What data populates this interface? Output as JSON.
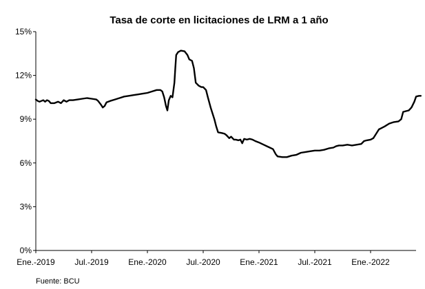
{
  "chart_data": {
    "type": "line",
    "title": "Tasa de corte en licitaciones de LRM a 1 año",
    "xlabel": "",
    "ylabel": "",
    "source": "Fuente: BCU",
    "x_ticks": [
      {
        "label": "Ene.-2019",
        "month": 0
      },
      {
        "label": "Jul.-2019",
        "month": 6
      },
      {
        "label": "Ene.-2020",
        "month": 12
      },
      {
        "label": "Jul.-2020",
        "month": 18
      },
      {
        "label": "Ene.-2021",
        "month": 24
      },
      {
        "label": "Jul.-2021",
        "month": 30
      },
      {
        "label": "Ene.-2022",
        "month": 36
      }
    ],
    "y_ticks": [
      {
        "label": "0%",
        "value": 0
      },
      {
        "label": "3%",
        "value": 3
      },
      {
        "label": "6%",
        "value": 6
      },
      {
        "label": "9%",
        "value": 9
      },
      {
        "label": "12%",
        "value": 12
      },
      {
        "label": "15%",
        "value": 15
      }
    ],
    "ylim": [
      0,
      15
    ],
    "xlim_month": [
      0,
      41
    ],
    "grid": false,
    "legend": "none",
    "color": "#000000",
    "series": [
      {
        "points": [
          [
            0.0,
            10.35
          ],
          [
            0.2,
            10.25
          ],
          [
            0.4,
            10.2
          ],
          [
            0.6,
            10.25
          ],
          [
            0.8,
            10.3
          ],
          [
            1.0,
            10.2
          ],
          [
            1.2,
            10.3
          ],
          [
            1.4,
            10.25
          ],
          [
            1.6,
            10.1
          ],
          [
            2.0,
            10.1
          ],
          [
            2.4,
            10.2
          ],
          [
            2.7,
            10.1
          ],
          [
            3.0,
            10.3
          ],
          [
            3.3,
            10.2
          ],
          [
            3.6,
            10.3
          ],
          [
            4.0,
            10.3
          ],
          [
            4.5,
            10.35
          ],
          [
            5.0,
            10.4
          ],
          [
            5.5,
            10.45
          ],
          [
            6.0,
            10.4
          ],
          [
            6.5,
            10.35
          ],
          [
            6.7,
            10.25
          ],
          [
            7.0,
            10.0
          ],
          [
            7.2,
            9.8
          ],
          [
            7.4,
            9.9
          ],
          [
            7.6,
            10.15
          ],
          [
            8.0,
            10.25
          ],
          [
            8.5,
            10.35
          ],
          [
            9.0,
            10.45
          ],
          [
            9.5,
            10.55
          ],
          [
            10.0,
            10.6
          ],
          [
            10.5,
            10.65
          ],
          [
            11.0,
            10.7
          ],
          [
            11.5,
            10.75
          ],
          [
            12.0,
            10.8
          ],
          [
            12.5,
            10.9
          ],
          [
            13.0,
            11.0
          ],
          [
            13.4,
            11.0
          ],
          [
            13.6,
            10.9
          ],
          [
            13.8,
            10.5
          ],
          [
            14.0,
            9.9
          ],
          [
            14.15,
            9.6
          ],
          [
            14.3,
            10.3
          ],
          [
            14.5,
            10.6
          ],
          [
            14.7,
            10.5
          ],
          [
            14.9,
            11.5
          ],
          [
            15.0,
            12.5
          ],
          [
            15.1,
            13.4
          ],
          [
            15.3,
            13.6
          ],
          [
            15.6,
            13.7
          ],
          [
            16.0,
            13.65
          ],
          [
            16.3,
            13.4
          ],
          [
            16.5,
            13.1
          ],
          [
            16.8,
            13.0
          ],
          [
            17.0,
            12.5
          ],
          [
            17.2,
            11.5
          ],
          [
            17.5,
            11.3
          ],
          [
            17.8,
            11.2
          ],
          [
            18.0,
            11.2
          ],
          [
            18.3,
            11.0
          ],
          [
            18.5,
            10.5
          ],
          [
            18.8,
            9.8
          ],
          [
            19.0,
            9.4
          ],
          [
            19.2,
            9.0
          ],
          [
            19.4,
            8.5
          ],
          [
            19.6,
            8.1
          ],
          [
            20.0,
            8.05
          ],
          [
            20.3,
            8.0
          ],
          [
            20.5,
            7.9
          ],
          [
            20.8,
            7.7
          ],
          [
            21.0,
            7.8
          ],
          [
            21.3,
            7.6
          ],
          [
            21.5,
            7.6
          ],
          [
            21.8,
            7.55
          ],
          [
            22.0,
            7.6
          ],
          [
            22.2,
            7.35
          ],
          [
            22.4,
            7.65
          ],
          [
            22.7,
            7.6
          ],
          [
            23.0,
            7.65
          ],
          [
            23.3,
            7.6
          ],
          [
            23.6,
            7.5
          ],
          [
            24.0,
            7.4
          ],
          [
            24.5,
            7.25
          ],
          [
            25.0,
            7.1
          ],
          [
            25.5,
            6.95
          ],
          [
            25.8,
            6.6
          ],
          [
            26.0,
            6.45
          ],
          [
            26.5,
            6.4
          ],
          [
            27.0,
            6.4
          ],
          [
            27.5,
            6.5
          ],
          [
            28.0,
            6.55
          ],
          [
            28.5,
            6.7
          ],
          [
            29.0,
            6.75
          ],
          [
            29.5,
            6.8
          ],
          [
            30.0,
            6.85
          ],
          [
            30.5,
            6.85
          ],
          [
            31.0,
            6.9
          ],
          [
            31.5,
            7.0
          ],
          [
            32.0,
            7.05
          ],
          [
            32.3,
            7.15
          ],
          [
            32.6,
            7.2
          ],
          [
            33.0,
            7.2
          ],
          [
            33.5,
            7.25
          ],
          [
            34.0,
            7.2
          ],
          [
            34.5,
            7.25
          ],
          [
            35.0,
            7.3
          ],
          [
            35.3,
            7.5
          ],
          [
            35.6,
            7.55
          ],
          [
            36.0,
            7.6
          ],
          [
            36.3,
            7.7
          ],
          [
            36.6,
            8.0
          ],
          [
            36.9,
            8.3
          ],
          [
            37.2,
            8.4
          ],
          [
            37.5,
            8.5
          ],
          [
            38.0,
            8.7
          ],
          [
            38.5,
            8.8
          ],
          [
            39.0,
            8.85
          ],
          [
            39.3,
            9.0
          ],
          [
            39.5,
            9.5
          ],
          [
            39.8,
            9.55
          ],
          [
            40.1,
            9.6
          ],
          [
            40.4,
            9.8
          ],
          [
            40.7,
            10.2
          ],
          [
            40.9,
            10.55
          ],
          [
            41.2,
            10.6
          ],
          [
            41.4,
            10.6
          ]
        ]
      }
    ]
  }
}
